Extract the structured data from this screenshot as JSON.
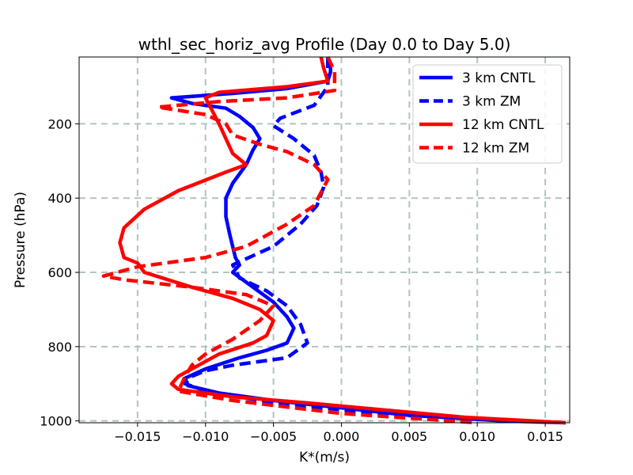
{
  "chart_data": {
    "type": "line",
    "title": "wthl_sec_horiz_avg Profile (Day 0.0 to Day 5.0)",
    "xlabel": "K*(m/s)",
    "ylabel": "Pressure (hPa)",
    "xlim": [
      -0.0193,
      0.0168
    ],
    "ylim": [
      1005,
      20
    ],
    "y_inverted": true,
    "grid": true,
    "legend_position": "top-right",
    "xticks": [
      -0.015,
      -0.01,
      -0.005,
      0.0,
      0.005,
      0.01,
      0.015
    ],
    "xtick_labels": [
      "−0.015",
      "−0.010",
      "−0.005",
      "0.000",
      "0.005",
      "0.010",
      "0.015"
    ],
    "yticks": [
      200,
      400,
      600,
      800,
      1000
    ],
    "ytick_labels": [
      "200",
      "400",
      "600",
      "800",
      "1000"
    ],
    "series": [
      {
        "name": "3 km CNTL",
        "color": "#0000ff",
        "style": "solid",
        "points": [
          [
            -0.001,
            20
          ],
          [
            -0.0008,
            40
          ],
          [
            -0.0008,
            60
          ],
          [
            -0.001,
            85
          ],
          [
            -0.004,
            105
          ],
          [
            -0.008,
            118
          ],
          [
            -0.0125,
            130
          ],
          [
            -0.011,
            145
          ],
          [
            -0.0085,
            158
          ],
          [
            -0.0075,
            180
          ],
          [
            -0.0065,
            210
          ],
          [
            -0.006,
            240
          ],
          [
            -0.0065,
            270
          ],
          [
            -0.007,
            310
          ],
          [
            -0.008,
            360
          ],
          [
            -0.0085,
            400
          ],
          [
            -0.0085,
            450
          ],
          [
            -0.0082,
            500
          ],
          [
            -0.0078,
            560
          ],
          [
            -0.0075,
            580
          ],
          [
            -0.008,
            600
          ],
          [
            -0.0065,
            640
          ],
          [
            -0.005,
            680
          ],
          [
            -0.004,
            720
          ],
          [
            -0.0035,
            750
          ],
          [
            -0.004,
            790
          ],
          [
            -0.0055,
            810
          ],
          [
            -0.0075,
            830
          ],
          [
            -0.01,
            860
          ],
          [
            -0.0115,
            885
          ],
          [
            -0.0113,
            905
          ],
          [
            -0.009,
            925
          ],
          [
            -0.005,
            945
          ],
          [
            0.0,
            965
          ],
          [
            0.005,
            985
          ],
          [
            0.012,
            1000
          ],
          [
            0.0165,
            1005
          ]
        ]
      },
      {
        "name": "3 km ZM",
        "color": "#0000ff",
        "style": "dashed",
        "points": [
          [
            -0.001,
            20
          ],
          [
            -0.001,
            60
          ],
          [
            -0.001,
            100
          ],
          [
            -0.002,
            150
          ],
          [
            -0.0045,
            185
          ],
          [
            -0.005,
            205
          ],
          [
            -0.0035,
            240
          ],
          [
            -0.002,
            285
          ],
          [
            -0.0015,
            330
          ],
          [
            -0.0013,
            370
          ],
          [
            -0.0018,
            420
          ],
          [
            -0.003,
            470
          ],
          [
            -0.005,
            530
          ],
          [
            -0.008,
            580
          ],
          [
            -0.0075,
            615
          ],
          [
            -0.0055,
            650
          ],
          [
            -0.004,
            690
          ],
          [
            -0.003,
            740
          ],
          [
            -0.0025,
            790
          ],
          [
            -0.004,
            830
          ],
          [
            -0.008,
            850
          ],
          [
            -0.01,
            865
          ],
          [
            -0.011,
            880
          ],
          [
            -0.0115,
            900
          ],
          [
            -0.0095,
            925
          ],
          [
            -0.005,
            950
          ],
          [
            0.0,
            970
          ],
          [
            0.007,
            995
          ],
          [
            0.01,
            1005
          ]
        ]
      },
      {
        "name": "12 km CNTL",
        "color": "#ff0000",
        "style": "solid",
        "points": [
          [
            -0.0015,
            20
          ],
          [
            -0.0013,
            50
          ],
          [
            -0.001,
            85
          ],
          [
            -0.004,
            100
          ],
          [
            -0.009,
            115
          ],
          [
            -0.01,
            130
          ],
          [
            -0.0095,
            165
          ],
          [
            -0.009,
            200
          ],
          [
            -0.0085,
            240
          ],
          [
            -0.008,
            280
          ],
          [
            -0.007,
            310
          ],
          [
            -0.0085,
            330
          ],
          [
            -0.012,
            380
          ],
          [
            -0.0145,
            430
          ],
          [
            -0.016,
            480
          ],
          [
            -0.0163,
            520
          ],
          [
            -0.016,
            560
          ],
          [
            -0.015,
            575
          ],
          [
            -0.0145,
            600
          ],
          [
            -0.011,
            640
          ],
          [
            -0.008,
            670
          ],
          [
            -0.006,
            700
          ],
          [
            -0.005,
            730
          ],
          [
            -0.0055,
            770
          ],
          [
            -0.0065,
            790
          ],
          [
            -0.009,
            820
          ],
          [
            -0.011,
            860
          ],
          [
            -0.012,
            880
          ],
          [
            -0.0125,
            900
          ],
          [
            -0.012,
            915
          ],
          [
            -0.008,
            935
          ],
          [
            -0.003,
            950
          ],
          [
            0.003,
            970
          ],
          [
            0.009,
            990
          ],
          [
            0.0165,
            1005
          ]
        ]
      },
      {
        "name": "12 km ZM",
        "color": "#ff0000",
        "style": "dashed",
        "points": [
          [
            -0.001,
            20
          ],
          [
            -0.0005,
            60
          ],
          [
            -0.0005,
            110
          ],
          [
            -0.004,
            130
          ],
          [
            -0.009,
            140
          ],
          [
            -0.0135,
            155
          ],
          [
            -0.01,
            175
          ],
          [
            -0.0085,
            200
          ],
          [
            -0.008,
            230
          ],
          [
            -0.006,
            255
          ],
          [
            -0.004,
            275
          ],
          [
            -0.002,
            310
          ],
          [
            -0.001,
            350
          ],
          [
            -0.002,
            420
          ],
          [
            -0.004,
            470
          ],
          [
            -0.007,
            530
          ],
          [
            -0.01,
            560
          ],
          [
            -0.015,
            585
          ],
          [
            -0.0175,
            610
          ],
          [
            -0.016,
            620
          ],
          [
            -0.011,
            640
          ],
          [
            -0.007,
            660
          ],
          [
            -0.005,
            690
          ],
          [
            -0.006,
            730
          ],
          [
            -0.008,
            780
          ],
          [
            -0.01,
            820
          ],
          [
            -0.011,
            850
          ],
          [
            -0.0115,
            880
          ],
          [
            -0.012,
            920
          ],
          [
            -0.008,
            945
          ],
          [
            0.0,
            980
          ],
          [
            0.008,
            1000
          ],
          [
            0.01,
            1005
          ]
        ]
      }
    ]
  }
}
